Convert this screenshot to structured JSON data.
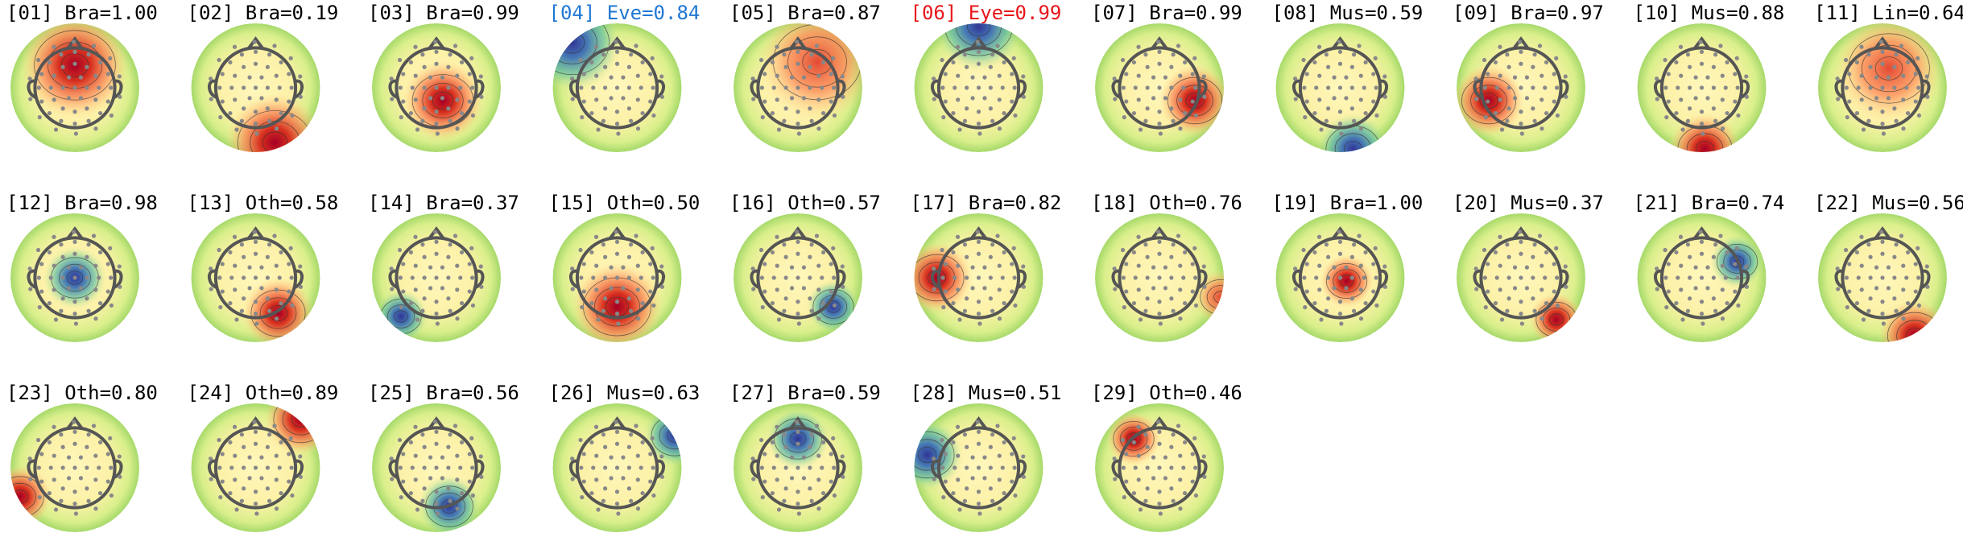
{
  "components": [
    {
      "title": "[01] Bra=1.00",
      "color": "#000000"
    },
    {
      "title": "[02] Bra=0.19",
      "color": "#000000"
    },
    {
      "title": "[03] Bra=0.99",
      "color": "#000000"
    },
    {
      "title": "[04] Eve=0.84",
      "color": "#1f77d4"
    },
    {
      "title": "[05] Bra=0.87",
      "color": "#000000"
    },
    {
      "title": "[06] Eye=0.99",
      "color": "#e8161a"
    },
    {
      "title": "[07] Bra=0.99",
      "color": "#000000"
    },
    {
      "title": "[08] Mus=0.59",
      "color": "#000000"
    },
    {
      "title": "[09] Bra=0.97",
      "color": "#000000"
    },
    {
      "title": "[10] Mus=0.88",
      "color": "#000000"
    },
    {
      "title": "[11] Lin=0.64",
      "color": "#000000"
    },
    {
      "title": "[12] Bra=0.98",
      "color": "#000000"
    },
    {
      "title": "[13] Oth=0.58",
      "color": "#000000"
    },
    {
      "title": "[14] Bra=0.37",
      "color": "#000000"
    },
    {
      "title": "[15] Oth=0.50",
      "color": "#000000"
    },
    {
      "title": "[16] Oth=0.57",
      "color": "#000000"
    },
    {
      "title": "[17] Bra=0.82",
      "color": "#000000"
    },
    {
      "title": "[18] Oth=0.76",
      "color": "#000000"
    },
    {
      "title": "[19] Bra=1.00",
      "color": "#000000"
    },
    {
      "title": "[20] Mus=0.37",
      "color": "#000000"
    },
    {
      "title": "[21] Bra=0.74",
      "color": "#000000"
    },
    {
      "title": "[22] Mus=0.56",
      "color": "#000000"
    },
    {
      "title": "[23] Oth=0.80",
      "color": "#000000"
    },
    {
      "title": "[24] Oth=0.89",
      "color": "#000000"
    },
    {
      "title": "[25] Bra=0.56",
      "color": "#000000"
    },
    {
      "title": "[26] Mus=0.63",
      "color": "#000000"
    },
    {
      "title": "[27] Bra=0.59",
      "color": "#000000"
    },
    {
      "title": "[28] Mus=0.51",
      "color": "#000000"
    },
    {
      "title": "[29] Oth=0.46",
      "color": "#000000"
    }
  ]
}
